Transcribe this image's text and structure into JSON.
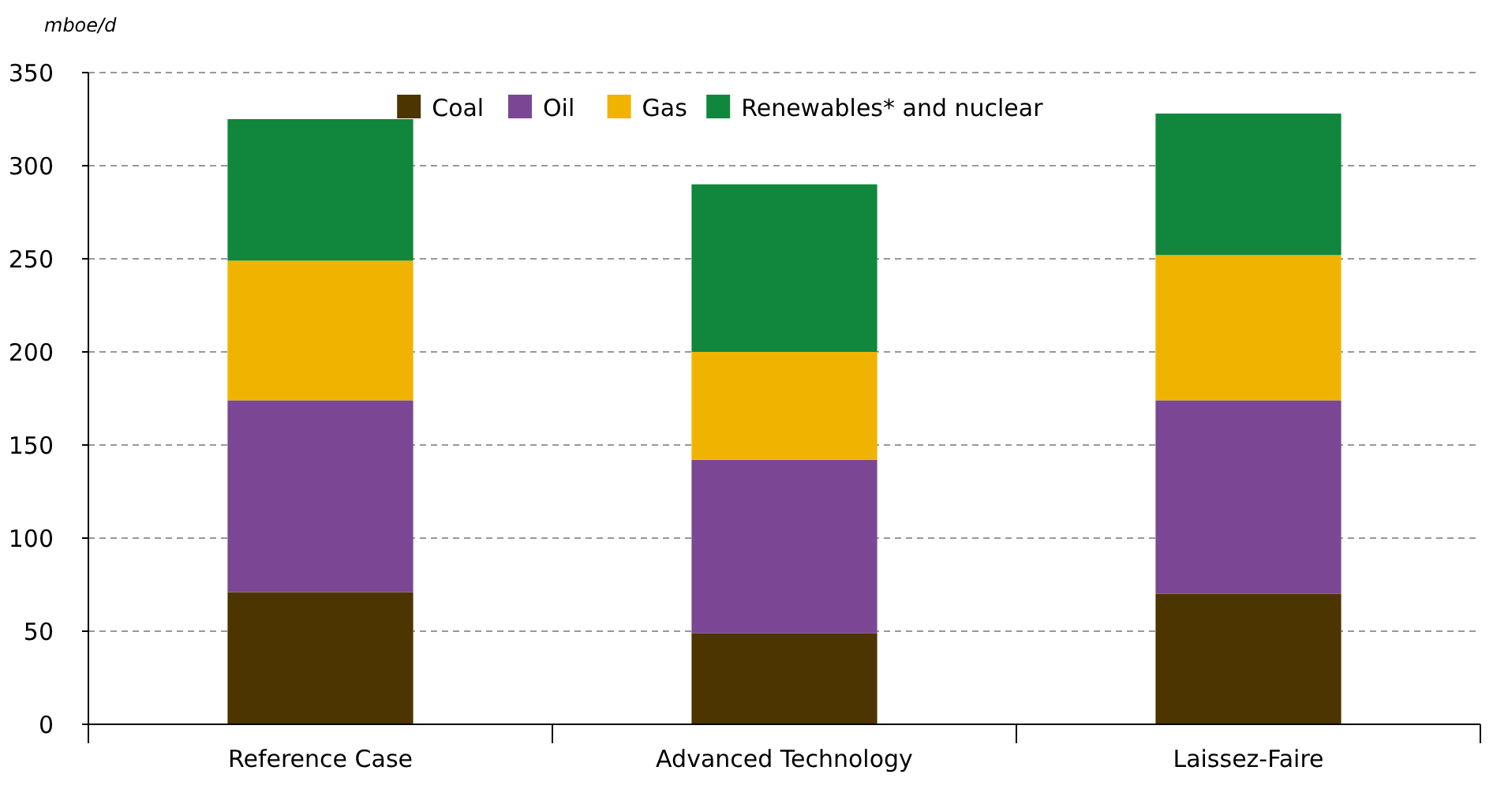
{
  "chart_data": {
    "type": "bar",
    "stacked": true,
    "ylabel": "mboe/d",
    "categories": [
      "Reference Case",
      "Advanced Technology",
      "Laissez-Faire"
    ],
    "series": [
      {
        "name": "Coal",
        "color": "#4d3500",
        "values": [
          71,
          49,
          70
        ]
      },
      {
        "name": "Oil",
        "color": "#7b4795",
        "values": [
          103,
          93,
          104
        ]
      },
      {
        "name": "Gas",
        "color": "#f0b400",
        "values": [
          75,
          58,
          78
        ]
      },
      {
        "name": "Renewables* and nuclear",
        "color": "#10873c",
        "values": [
          76,
          90,
          76
        ]
      }
    ],
    "ylim": [
      0,
      350
    ],
    "yticks": [
      0,
      50,
      100,
      150,
      200,
      250,
      300,
      350
    ],
    "grid": "y",
    "legend": "top"
  }
}
